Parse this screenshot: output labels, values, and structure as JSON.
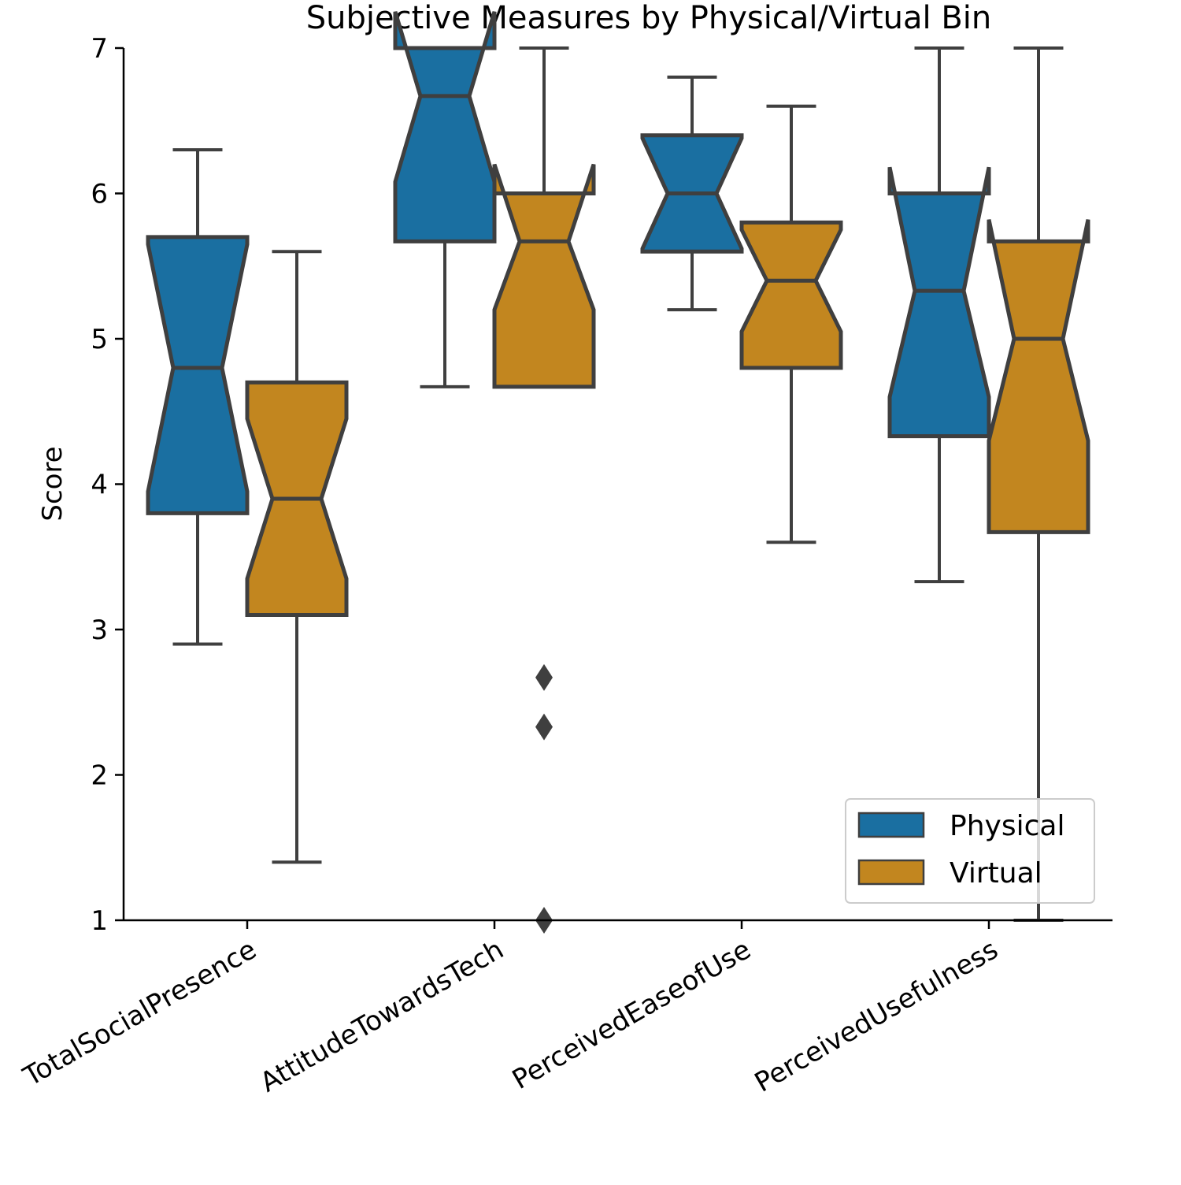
{
  "chart_data": {
    "type": "boxplot",
    "notched": true,
    "title": "Subjective Measures by Physical/Virtual Bin",
    "xlabel": "",
    "ylabel": "Score",
    "ylim": [
      1,
      7
    ],
    "yticks": [
      1,
      2,
      3,
      4,
      5,
      6,
      7
    ],
    "grid": false,
    "legend_position": "lower-right",
    "categories": [
      "TotalSocialPresence",
      "AttitudeTowardsTech",
      "PerceivedEaseofUse",
      "PerceivedUsefulness"
    ],
    "series": [
      {
        "name": "Physical",
        "color": "#1a6fa1",
        "boxes": [
          {
            "whislo": 2.9,
            "q1": 3.8,
            "notch_lo": 3.95,
            "med": 4.8,
            "notch_hi": 5.65,
            "q3": 5.7,
            "whishi": 6.3,
            "fliers": []
          },
          {
            "whislo": 4.67,
            "q1": 5.67,
            "notch_lo": 6.08,
            "med": 6.67,
            "notch_hi": 7.25,
            "q3": 7.0,
            "whishi": 7.0,
            "fliers": []
          },
          {
            "whislo": 5.2,
            "q1": 5.6,
            "notch_lo": 5.62,
            "med": 6.0,
            "notch_hi": 6.38,
            "q3": 6.4,
            "whishi": 6.8,
            "fliers": []
          },
          {
            "whislo": 3.33,
            "q1": 4.33,
            "notch_lo": 4.6,
            "med": 5.33,
            "notch_hi": 6.18,
            "q3": 6.0,
            "whishi": 7.0,
            "fliers": []
          }
        ]
      },
      {
        "name": "Virtual",
        "color": "#c2861f",
        "boxes": [
          {
            "whislo": 1.4,
            "q1": 3.1,
            "notch_lo": 3.35,
            "med": 3.9,
            "notch_hi": 4.45,
            "q3": 4.7,
            "whishi": 5.6,
            "fliers": []
          },
          {
            "whislo": 4.67,
            "q1": 4.67,
            "notch_lo": 5.2,
            "med": 5.67,
            "notch_hi": 6.2,
            "q3": 6.0,
            "whishi": 7.0,
            "fliers": [
              2.67,
              2.33,
              1.0
            ]
          },
          {
            "whislo": 3.6,
            "q1": 4.8,
            "notch_lo": 5.05,
            "med": 5.4,
            "notch_hi": 5.75,
            "q3": 5.8,
            "whishi": 6.6,
            "fliers": []
          },
          {
            "whislo": 1.0,
            "q1": 3.67,
            "notch_lo": 4.3,
            "med": 5.0,
            "notch_hi": 5.82,
            "q3": 5.67,
            "whishi": 7.0,
            "fliers": []
          }
        ]
      }
    ]
  }
}
